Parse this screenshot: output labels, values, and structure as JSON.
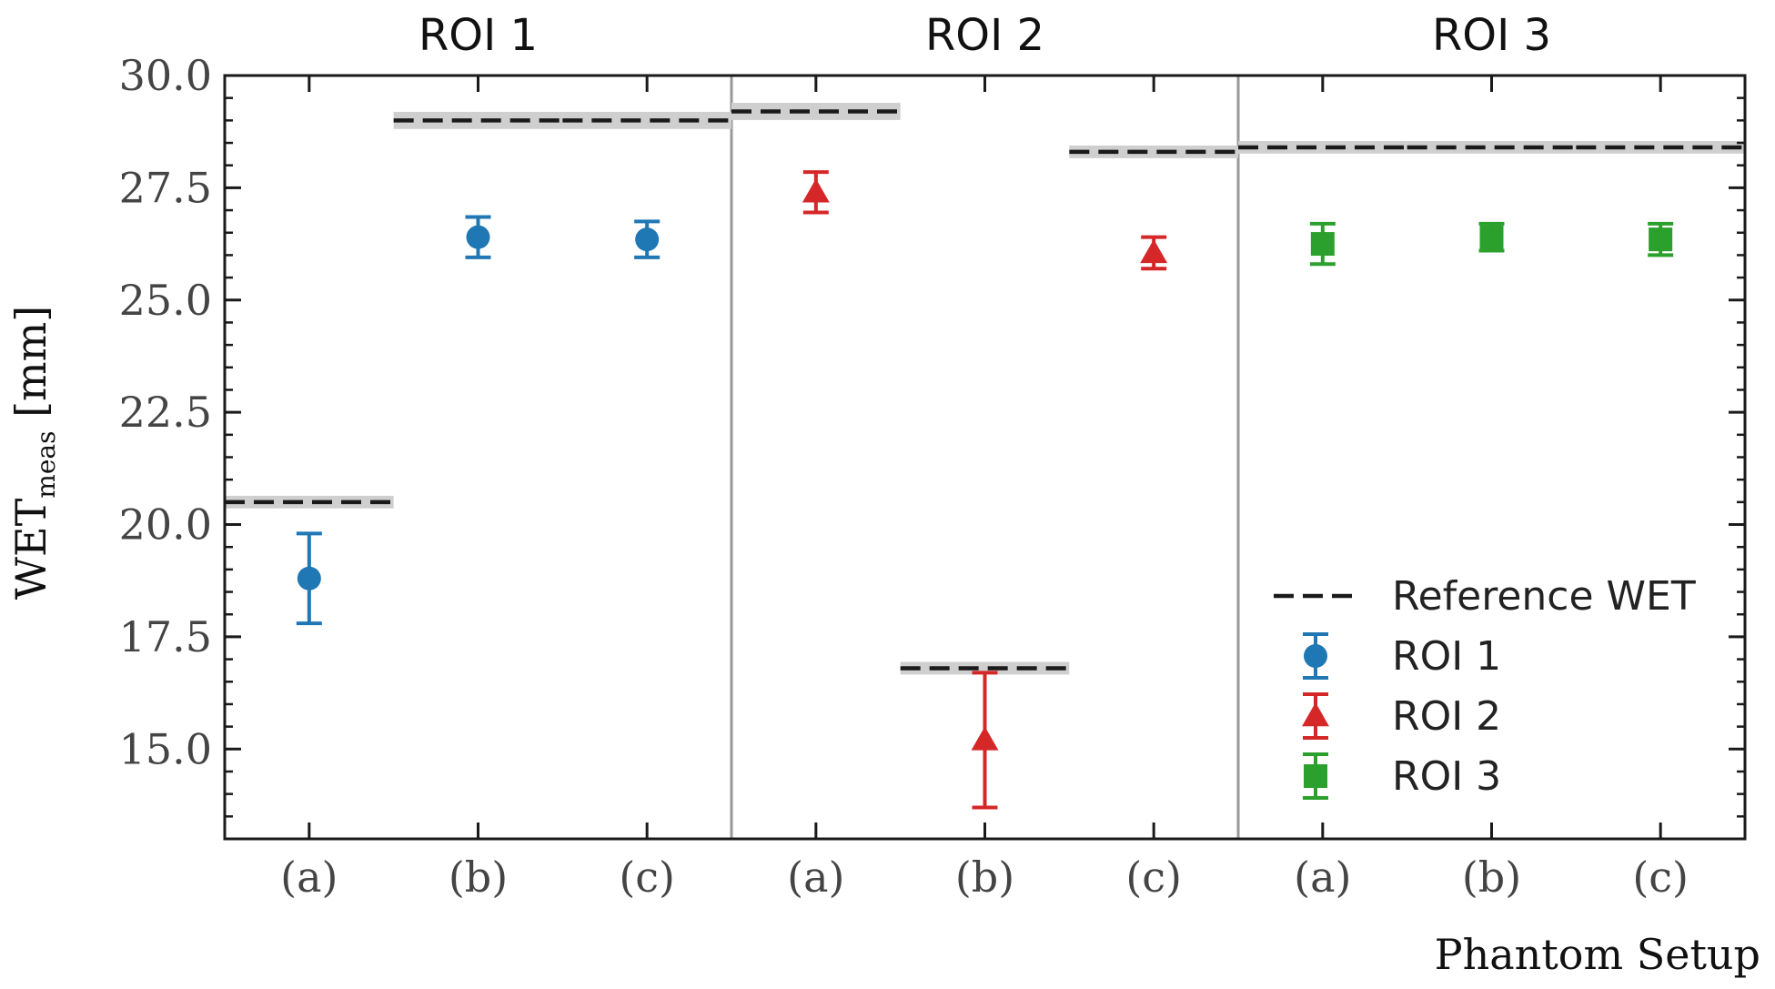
{
  "chart_data": {
    "type": "scatter",
    "title": "",
    "xlabel": "Phantom Setup",
    "ylabel_main": "WET",
    "ylabel_sub": "meas",
    "ylabel_unit": "[mm]",
    "ylim": [
      13.0,
      30.0
    ],
    "yticks": [
      "30.0",
      "27.5",
      "25.0",
      "22.5",
      "20.0",
      "17.5",
      "15.0"
    ],
    "ytick_values": [
      30.0,
      27.5,
      25.0,
      22.5,
      20.0,
      17.5,
      15.0
    ],
    "yminor_step": 0.5,
    "categories": [
      "(a)",
      "(b)",
      "(c)",
      "(a)",
      "(b)",
      "(c)",
      "(a)",
      "(b)",
      "(c)"
    ],
    "groups": [
      "ROI 1",
      "ROI 2",
      "ROI 3"
    ],
    "grid": false,
    "legend_position": "lower-right",
    "reference": {
      "name": "Reference WET",
      "values": [
        20.5,
        29.0,
        29.0,
        29.2,
        16.8,
        28.3,
        28.4,
        28.4,
        28.4
      ],
      "uncertainty": [
        0.1,
        0.15,
        0.15,
        0.15,
        0.1,
        0.1,
        0.1,
        0.1,
        0.1
      ]
    },
    "series": [
      {
        "name": "ROI 1",
        "marker": "circle",
        "color": "#1f77b4",
        "indices": [
          0,
          1,
          2
        ],
        "values": [
          18.8,
          26.4,
          26.35
        ],
        "errors": [
          1.0,
          0.45,
          0.4
        ]
      },
      {
        "name": "ROI 2",
        "marker": "triangle",
        "color": "#d62728",
        "indices": [
          3,
          4,
          5
        ],
        "values": [
          27.4,
          15.2,
          26.05
        ],
        "errors": [
          0.45,
          1.5,
          0.35
        ]
      },
      {
        "name": "ROI 3",
        "marker": "square",
        "color": "#2ca02c",
        "indices": [
          6,
          7,
          8
        ],
        "values": [
          26.25,
          26.4,
          26.35
        ],
        "errors": [
          0.45,
          0.3,
          0.35
        ]
      }
    ]
  }
}
